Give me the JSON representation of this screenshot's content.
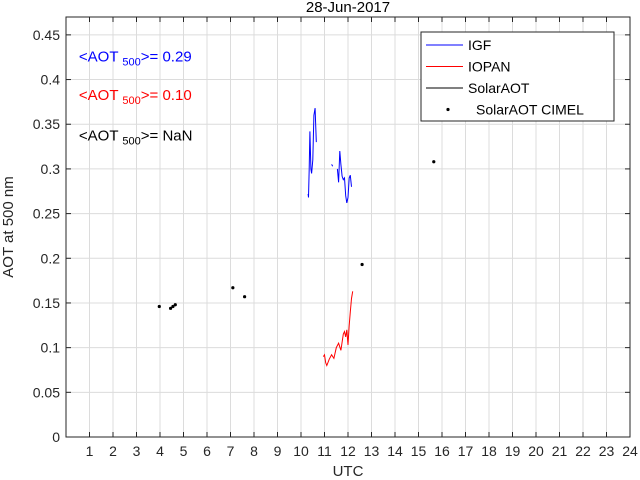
{
  "chart_data": {
    "type": "line",
    "title": "28-Jun-2017",
    "xlabel": "UTC",
    "ylabel": "AOT at 500 nm",
    "xlim": [
      0,
      24
    ],
    "ylim": [
      0,
      0.47
    ],
    "xticks": [
      1,
      2,
      3,
      4,
      5,
      6,
      7,
      8,
      9,
      10,
      11,
      12,
      13,
      14,
      15,
      16,
      17,
      18,
      19,
      20,
      21,
      22,
      23,
      24
    ],
    "yticks": [
      0,
      0.05,
      0.1,
      0.15,
      0.2,
      0.25,
      0.3,
      0.35,
      0.4,
      0.45
    ],
    "ytick_labels": [
      "0",
      "0.05",
      "0.1",
      "0.15",
      "0.2",
      "0.25",
      "0.3",
      "0.35",
      "0.4",
      "0.45"
    ],
    "grid": true,
    "legend_position": "top-right",
    "legend": [
      "IGF",
      "IOPAN",
      "SolarAOT",
      "SolarAOT CIMEL"
    ],
    "annotations": [
      {
        "prefix": "<AOT ",
        "sub": "500",
        "suffix": ">= 0.29",
        "color": "#0000ff",
        "x": 0.55,
        "y": 0.42
      },
      {
        "prefix": "<AOT ",
        "sub": "500",
        "suffix": ">= 0.10",
        "color": "#ff0000",
        "x": 0.55,
        "y": 0.377
      },
      {
        "prefix": "<AOT ",
        "sub": "500",
        "suffix": ">=  NaN",
        "color": "#000000",
        "x": 0.55,
        "y": 0.332
      }
    ],
    "series": [
      {
        "name": "IGF",
        "kind": "line",
        "color": "#0000ff",
        "segments": [
          [
            [
              10.3,
              0.272
            ],
            [
              10.32,
              0.268
            ],
            [
              10.35,
              0.3
            ],
            [
              10.38,
              0.342
            ],
            [
              10.42,
              0.3
            ],
            [
              10.45,
              0.295
            ],
            [
              10.5,
              0.31
            ],
            [
              10.55,
              0.36
            ],
            [
              10.6,
              0.368
            ],
            [
              10.65,
              0.33
            ]
          ],
          [
            [
              11.3,
              0.305
            ],
            [
              11.35,
              0.303
            ]
          ],
          [
            [
              11.55,
              0.3
            ],
            [
              11.6,
              0.285
            ],
            [
              11.65,
              0.32
            ],
            [
              11.7,
              0.305
            ],
            [
              11.75,
              0.292
            ],
            [
              11.8,
              0.288
            ],
            [
              11.85,
              0.29
            ],
            [
              11.9,
              0.27
            ],
            [
              11.95,
              0.262
            ],
            [
              12.0,
              0.268
            ],
            [
              12.05,
              0.29
            ],
            [
              12.1,
              0.293
            ],
            [
              12.15,
              0.28
            ]
          ]
        ]
      },
      {
        "name": "IOPAN",
        "kind": "line",
        "color": "#ff0000",
        "segments": [
          [
            [
              10.95,
              0.09
            ],
            [
              11.0,
              0.092
            ],
            [
              11.05,
              0.083
            ],
            [
              11.1,
              0.08
            ],
            [
              11.2,
              0.087
            ],
            [
              11.3,
              0.092
            ],
            [
              11.4,
              0.088
            ],
            [
              11.5,
              0.1
            ],
            [
              11.6,
              0.105
            ],
            [
              11.7,
              0.097
            ],
            [
              11.8,
              0.115
            ],
            [
              11.85,
              0.118
            ],
            [
              11.9,
              0.112
            ],
            [
              11.95,
              0.12
            ],
            [
              12.0,
              0.103
            ],
            [
              12.05,
              0.125
            ],
            [
              12.1,
              0.14
            ],
            [
              12.15,
              0.155
            ],
            [
              12.2,
              0.163
            ]
          ]
        ]
      },
      {
        "name": "SolarAOT",
        "kind": "line",
        "color": "#000000",
        "segments": []
      },
      {
        "name": "SolarAOT CIMEL",
        "kind": "points",
        "color": "#000000",
        "points": [
          [
            3.97,
            0.146
          ],
          [
            4.45,
            0.144
          ],
          [
            4.55,
            0.146
          ],
          [
            4.65,
            0.148
          ],
          [
            7.1,
            0.167
          ],
          [
            7.6,
            0.157
          ],
          [
            12.6,
            0.193
          ],
          [
            15.65,
            0.308
          ]
        ]
      }
    ]
  }
}
